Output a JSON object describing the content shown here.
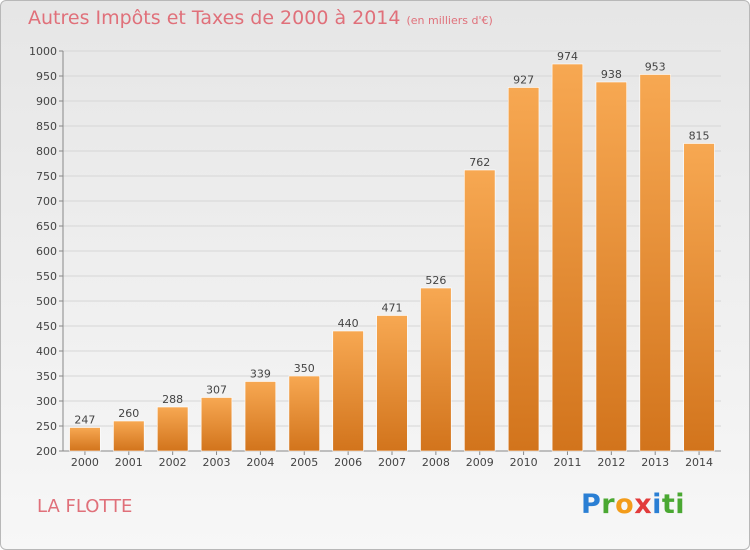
{
  "header": {
    "title": "Autres Impôts et Taxes de 2000 à 2014",
    "subtitle": "(en milliers d'€)"
  },
  "footer": {
    "city": "LA FLOTTE",
    "logo_letters": [
      "P",
      "r",
      "o",
      "x",
      "i",
      "ti"
    ]
  },
  "colors": {
    "title": "#e0707a",
    "bar_light": "#f7a852",
    "bar_dark": "#d2741c",
    "grid": "#d6d6d6"
  },
  "chart_data": {
    "type": "bar",
    "title": "Autres Impôts et Taxes de 2000 à 2014",
    "subtitle": "(en milliers d'€)",
    "xlabel": "",
    "ylabel": "",
    "categories": [
      "2000",
      "2001",
      "2002",
      "2003",
      "2004",
      "2005",
      "2006",
      "2007",
      "2008",
      "2009",
      "2010",
      "2011",
      "2012",
      "2013",
      "2014"
    ],
    "values": [
      247,
      260,
      288,
      307,
      339,
      350,
      440,
      471,
      526,
      762,
      927,
      974,
      938,
      953,
      815
    ],
    "ylim": [
      200,
      1000
    ],
    "yticks": [
      200,
      250,
      300,
      350,
      400,
      450,
      500,
      550,
      600,
      650,
      700,
      750,
      800,
      850,
      900,
      950,
      1000
    ],
    "grid": true,
    "legend": "none"
  }
}
